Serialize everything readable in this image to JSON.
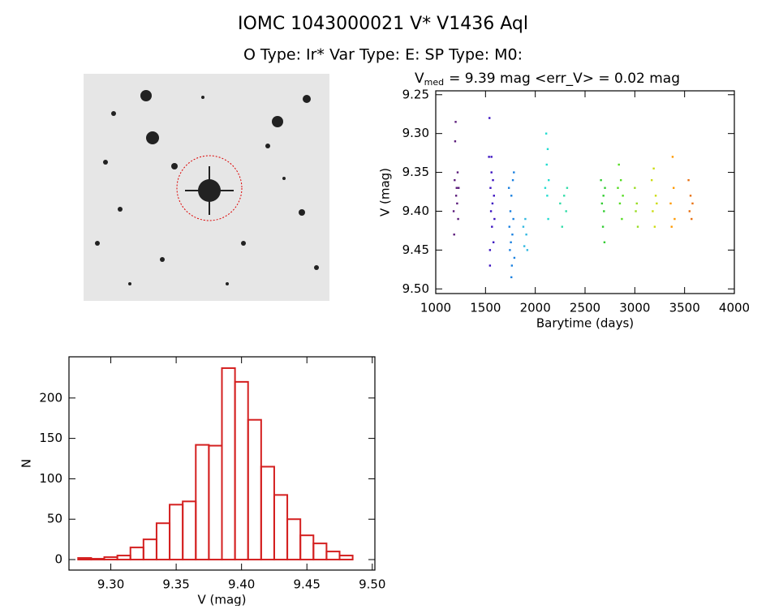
{
  "header": {
    "title": "IOMC 1043000021    V* V1436 Aql",
    "subtitle": "O Type: Ir*  Var Type: E:  SP Type: M0:"
  },
  "chart_data": [
    {
      "type": "scatter",
      "title": {
        "symbol": "V",
        "subscript": "med",
        "text": "= 9.39 mag <err_V> = 0.02 mag"
      },
      "x_label": "Barytime (days)",
      "y_label": "V (mag)",
      "xlim": [
        1000,
        4000
      ],
      "xticks": [
        1000,
        1500,
        2000,
        2500,
        3000,
        3500,
        4000
      ],
      "ylim": [
        9.245,
        9.506
      ],
      "y_inverted": true,
      "yticks": [
        {
          "value": 9.25,
          "label": "9.25"
        },
        {
          "value": 9.3,
          "label": "9.30"
        },
        {
          "value": 9.35,
          "label": "9.35"
        },
        {
          "value": 9.4,
          "label": "9.40"
        },
        {
          "value": 9.45,
          "label": "9.45"
        },
        {
          "value": 9.5,
          "label": "9.50"
        }
      ],
      "series": [
        {
          "color": "#5a1a7a",
          "x": [
            1180,
            1185,
            1190,
            1195,
            1200,
            1205,
            1210,
            1215,
            1220,
            1225,
            1230
          ],
          "values": [
            9.4,
            9.43,
            9.36,
            9.31,
            9.285,
            9.38,
            9.37,
            9.39,
            9.35,
            9.41,
            9.37
          ]
        },
        {
          "color": "#3a10c0",
          "x": [
            1535,
            1540,
            1545,
            1550,
            1555,
            1560,
            1565,
            1570,
            1575,
            1580,
            1585,
            1590,
            1545,
            1560
          ],
          "values": [
            9.33,
            9.28,
            9.45,
            9.37,
            9.4,
            9.35,
            9.42,
            9.39,
            9.36,
            9.44,
            9.38,
            9.41,
            9.47,
            9.33
          ]
        },
        {
          "color": "#1a80e0",
          "x": [
            1735,
            1740,
            1745,
            1750,
            1755,
            1760,
            1765,
            1770,
            1775,
            1780,
            1785,
            1760,
            1790
          ],
          "values": [
            9.37,
            9.42,
            9.45,
            9.4,
            9.44,
            9.38,
            9.47,
            9.43,
            9.36,
            9.41,
            9.35,
            9.485,
            9.46
          ]
        },
        {
          "color": "#30b8e0",
          "x": [
            1880,
            1890,
            1900,
            1910,
            1920
          ],
          "values": [
            9.42,
            9.445,
            9.41,
            9.43,
            9.45
          ]
        },
        {
          "color": "#20dcd0",
          "x": [
            2100,
            2110,
            2115,
            2120,
            2125,
            2130,
            2135
          ],
          "values": [
            9.37,
            9.3,
            9.34,
            9.38,
            9.32,
            9.41,
            9.36
          ]
        },
        {
          "color": "#30dca8",
          "x": [
            2250,
            2270,
            2290,
            2310,
            2320
          ],
          "values": [
            9.39,
            9.42,
            9.38,
            9.4,
            9.37
          ]
        },
        {
          "color": "#30cc30",
          "x": [
            2660,
            2670,
            2680,
            2685,
            2690,
            2695,
            2700
          ],
          "values": [
            9.36,
            9.39,
            9.42,
            9.38,
            9.4,
            9.44,
            9.37
          ]
        },
        {
          "color": "#55dc22",
          "x": [
            2830,
            2840,
            2850,
            2860,
            2870,
            2880
          ],
          "values": [
            9.37,
            9.34,
            9.39,
            9.36,
            9.41,
            9.38
          ]
        },
        {
          "color": "#99dc22",
          "x": [
            3000,
            3010,
            3020,
            3030
          ],
          "values": [
            9.37,
            9.4,
            9.39,
            9.42
          ]
        },
        {
          "color": "#ccdc11",
          "x": [
            3170,
            3180,
            3190,
            3200,
            3210,
            3220
          ],
          "values": [
            9.36,
            9.4,
            9.345,
            9.42,
            9.38,
            9.39
          ]
        },
        {
          "color": "#ff9900",
          "x": [
            3360,
            3370,
            3380,
            3390,
            3400
          ],
          "values": [
            9.39,
            9.42,
            9.33,
            9.37,
            9.41
          ]
        },
        {
          "color": "#e87010",
          "x": [
            3540,
            3550,
            3560,
            3570,
            3580
          ],
          "values": [
            9.36,
            9.4,
            9.38,
            9.41,
            9.39
          ]
        }
      ]
    },
    {
      "type": "histogram",
      "color": "#d42020",
      "x_label": "V (mag)",
      "y_label": "N",
      "bins": [
        9.275,
        9.285,
        9.295,
        9.305,
        9.315,
        9.325,
        9.335,
        9.345,
        9.355,
        9.365,
        9.375,
        9.385,
        9.395,
        9.405,
        9.415,
        9.425,
        9.435,
        9.445,
        9.455,
        9.465,
        9.475,
        9.485
      ],
      "values": [
        2,
        1,
        3,
        5,
        15,
        25,
        45,
        68,
        72,
        142,
        141,
        237,
        220,
        173,
        115,
        80,
        50,
        30,
        20,
        10,
        5
      ],
      "xlim": [
        9.268,
        9.502
      ],
      "xticks": [
        {
          "value": 9.3,
          "label": "9.30"
        },
        {
          "value": 9.35,
          "label": "9.35"
        },
        {
          "value": 9.4,
          "label": "9.40"
        },
        {
          "value": 9.45,
          "label": "9.45"
        },
        {
          "value": 9.5,
          "label": "9.50"
        }
      ],
      "ylim": [
        -13,
        251
      ],
      "yticks": [
        0,
        50,
        100,
        150,
        200
      ]
    }
  ]
}
